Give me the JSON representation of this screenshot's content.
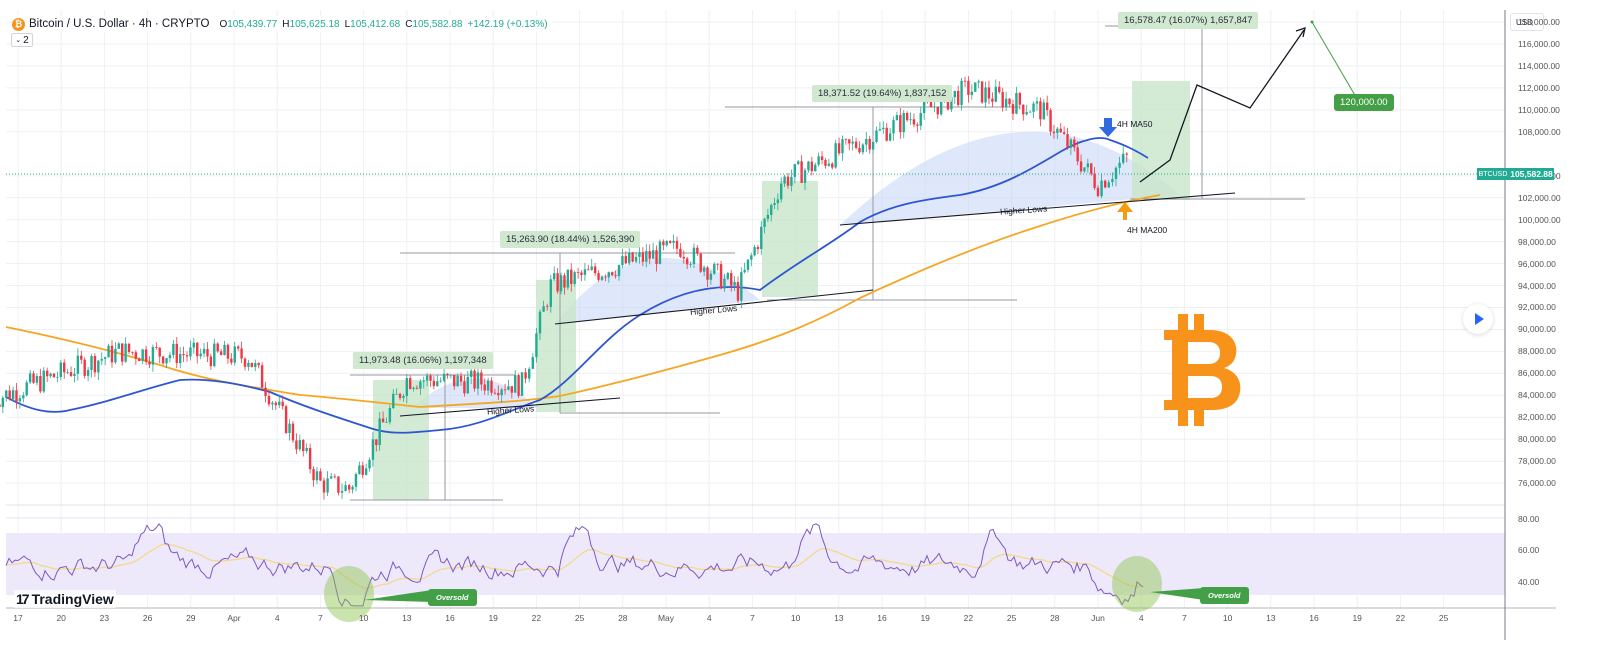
{
  "header": {
    "symbol_icon": "bitcoin-icon",
    "title": "Bitcoin / U.S. Dollar · 4h · CRYPTO",
    "ohlc": {
      "open_key": "O",
      "open": "105,439.77",
      "high_key": "H",
      "high": "105,625.18",
      "low_key": "L",
      "low": "105,412.68",
      "close_key": "C",
      "close": "105,582.88",
      "change": "+142.19 (+0.13%)"
    },
    "indicators_toggle": "2"
  },
  "price_axis": {
    "currency": "USD",
    "labels": [
      "118,000.00",
      "116,000.00",
      "114,000.00",
      "112,000.00",
      "110,000.00",
      "108,000.00",
      "104,000.00",
      "102,000.00",
      "100,000.00",
      "98,000.00",
      "96,000.00",
      "94,000.00",
      "92,000.00",
      "90,000.00",
      "88,000.00",
      "86,000.00",
      "84,000.00",
      "82,000.00",
      "80,000.00",
      "78,000.00",
      "76,000.00"
    ],
    "symbol_tag": "BTCUSD",
    "last_price": "105,582.88"
  },
  "rsi_axis": {
    "labels": [
      "80.00",
      "60.00",
      "40.00"
    ]
  },
  "time_axis": {
    "labels": [
      "17",
      "20",
      "23",
      "26",
      "29",
      "Apr",
      "4",
      "7",
      "10",
      "13",
      "16",
      "19",
      "22",
      "25",
      "28",
      "May",
      "4",
      "7",
      "10",
      "13",
      "16",
      "19",
      "22",
      "25",
      "28",
      "Jun",
      "4",
      "7",
      "10",
      "13",
      "16",
      "19",
      "22",
      "25"
    ]
  },
  "annotations": {
    "measure_1": "11,973.48 (16.06%) 1,197,348",
    "measure_2": "15,263.90 (18.44%) 1,526,390",
    "measure_3": "18,371.52 (19.64%) 1,837,152",
    "measure_4": "16,578.47 (16.07%) 1,657,847",
    "target": "120,000.00",
    "higher_lows_1": "Higher Lows",
    "higher_lows_2": "Higher Lows",
    "higher_lows_3": "Higher Lows",
    "ma50_label": "4H MA50",
    "ma200_label": "4H MA200",
    "oversold_1": "Oversold",
    "oversold_2": "Oversold"
  },
  "branding": {
    "logo_text": "TradingView",
    "logo_mark": "17"
  },
  "colors": {
    "up": "#22ab94",
    "down": "#f23645",
    "ma50": "#2f56d2",
    "ma200": "#f5a623",
    "rsi": "#7e57c2",
    "rsi_ma": "#f3d98a",
    "green_box": "#c8e6c9",
    "arc": "#c5d3f5",
    "bitcoin": "#f7931a"
  },
  "chart_data": {
    "type": "candlestick",
    "title": "Bitcoin / U.S. Dollar · 4h · CRYPTO",
    "ylabel": "USD",
    "ylim": [
      74000,
      119500
    ],
    "x_range": [
      "Mar 15",
      "Jun 26"
    ],
    "last_close": 105582.88,
    "key_price_path": [
      {
        "date": "Mar 15",
        "price": 83500
      },
      {
        "date": "Mar 24",
        "price": 88000
      },
      {
        "date": "Apr 2",
        "price": 87500
      },
      {
        "date": "Apr 7",
        "price": 76000
      },
      {
        "date": "Apr 9",
        "price": 75500
      },
      {
        "date": "Apr 13",
        "price": 85500
      },
      {
        "date": "Apr 21",
        "price": 85000
      },
      {
        "date": "Apr 23",
        "price": 94000
      },
      {
        "date": "May 2",
        "price": 97500
      },
      {
        "date": "May 6",
        "price": 93500
      },
      {
        "date": "May 9",
        "price": 103500
      },
      {
        "date": "May 22",
        "price": 111900
      },
      {
        "date": "May 27",
        "price": 110000
      },
      {
        "date": "May 31",
        "price": 103200
      },
      {
        "date": "Jun 2",
        "price": 105582.88
      }
    ],
    "projection": [
      {
        "date": "Jun 2",
        "price": 105600
      },
      {
        "date": "Jun 5",
        "price": 114000
      },
      {
        "date": "Jun 10",
        "price": 112000
      },
      {
        "date": "Jun 14",
        "price": 118500
      }
    ],
    "series": [
      {
        "name": "4H MA50",
        "color": "#2f56d2"
      },
      {
        "name": "4H MA200",
        "color": "#f5a623"
      }
    ],
    "measurements": [
      {
        "label": "11,973.48 (16.06%) 1,197,348",
        "change": 11973.48,
        "pct": 16.06
      },
      {
        "label": "15,263.90 (18.44%) 1,526,390",
        "change": 15263.9,
        "pct": 18.44
      },
      {
        "label": "18,371.52 (19.64%) 1,837,152",
        "change": 18371.52,
        "pct": 19.64
      },
      {
        "label": "16,578.47 (16.07%) 1,657,847",
        "change": 16578.47,
        "pct": 16.07
      }
    ],
    "target": 120000,
    "rsi": {
      "ylim": [
        20,
        90
      ],
      "band": [
        30,
        70
      ],
      "ticks": [
        80,
        60,
        40
      ],
      "oversold_points": [
        "Apr 7",
        "Jun 1"
      ]
    }
  }
}
